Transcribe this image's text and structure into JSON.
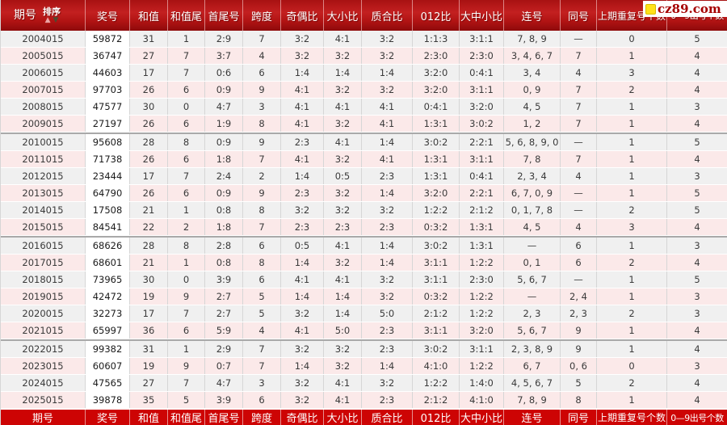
{
  "header": {
    "sort_label": "排序",
    "sort_asc_icon": "▲",
    "sort_desc_icon": "▼"
  },
  "columns": [
    {
      "key": "period",
      "label": "期号"
    },
    {
      "key": "prize",
      "label": "奖号"
    },
    {
      "key": "sum",
      "label": "和值"
    },
    {
      "key": "sum_tail",
      "label": "和值尾"
    },
    {
      "key": "first_last",
      "label": "首尾号"
    },
    {
      "key": "span",
      "label": "跨度"
    },
    {
      "key": "odd_even",
      "label": "奇偶比"
    },
    {
      "key": "big_small",
      "label": "大小比"
    },
    {
      "key": "prime_comp",
      "label": "质合比"
    },
    {
      "key": "ratio_012",
      "label": "012比"
    },
    {
      "key": "big_mid_small",
      "label": "大中小比"
    },
    {
      "key": "consecutive",
      "label": "连号"
    },
    {
      "key": "same_number",
      "label": "同号"
    },
    {
      "key": "prev_repeat",
      "label": "上期重复号个数"
    },
    {
      "key": "digit_count",
      "label": "0—9出号个数"
    }
  ],
  "rows": [
    [
      "2004015",
      "59872",
      "31",
      "1",
      "2:9",
      "7",
      "3:2",
      "4:1",
      "3:2",
      "1:1:3",
      "3:1:1",
      "7, 8, 9",
      "—",
      "0",
      "5"
    ],
    [
      "2005015",
      "36747",
      "27",
      "7",
      "3:7",
      "4",
      "3:2",
      "3:2",
      "3:2",
      "2:3:0",
      "2:3:0",
      "3, 4, 6, 7",
      "7",
      "1",
      "4"
    ],
    [
      "2006015",
      "44603",
      "17",
      "7",
      "0:6",
      "6",
      "1:4",
      "1:4",
      "1:4",
      "3:2:0",
      "0:4:1",
      "3, 4",
      "4",
      "3",
      "4"
    ],
    [
      "2007015",
      "97703",
      "26",
      "6",
      "0:9",
      "9",
      "4:1",
      "3:2",
      "3:2",
      "3:2:0",
      "3:1:1",
      "0, 9",
      "7",
      "2",
      "4"
    ],
    [
      "2008015",
      "47577",
      "30",
      "0",
      "4:7",
      "3",
      "4:1",
      "4:1",
      "4:1",
      "0:4:1",
      "3:2:0",
      "4, 5",
      "7",
      "1",
      "3"
    ],
    [
      "2009015",
      "27197",
      "26",
      "6",
      "1:9",
      "8",
      "4:1",
      "3:2",
      "4:1",
      "1:3:1",
      "3:0:2",
      "1, 2",
      "7",
      "1",
      "4"
    ],
    [
      "2010015",
      "95608",
      "28",
      "8",
      "0:9",
      "9",
      "2:3",
      "4:1",
      "1:4",
      "3:0:2",
      "2:2:1",
      "5, 6, 8, 9, 0",
      "—",
      "1",
      "5"
    ],
    [
      "2011015",
      "71738",
      "26",
      "6",
      "1:8",
      "7",
      "4:1",
      "3:2",
      "4:1",
      "1:3:1",
      "3:1:1",
      "7, 8",
      "7",
      "1",
      "4"
    ],
    [
      "2012015",
      "23444",
      "17",
      "7",
      "2:4",
      "2",
      "1:4",
      "0:5",
      "2:3",
      "1:3:1",
      "0:4:1",
      "2, 3, 4",
      "4",
      "1",
      "3"
    ],
    [
      "2013015",
      "64790",
      "26",
      "6",
      "0:9",
      "9",
      "2:3",
      "3:2",
      "1:4",
      "3:2:0",
      "2:2:1",
      "6, 7, 0, 9",
      "—",
      "1",
      "5"
    ],
    [
      "2014015",
      "17508",
      "21",
      "1",
      "0:8",
      "8",
      "3:2",
      "3:2",
      "3:2",
      "1:2:2",
      "2:1:2",
      "0, 1, 7, 8",
      "—",
      "2",
      "5"
    ],
    [
      "2015015",
      "84541",
      "22",
      "2",
      "1:8",
      "7",
      "2:3",
      "2:3",
      "2:3",
      "0:3:2",
      "1:3:1",
      "4, 5",
      "4",
      "3",
      "4"
    ],
    [
      "2016015",
      "68626",
      "28",
      "8",
      "2:8",
      "6",
      "0:5",
      "4:1",
      "1:4",
      "3:0:2",
      "1:3:1",
      "—",
      "6",
      "1",
      "3"
    ],
    [
      "2017015",
      "68601",
      "21",
      "1",
      "0:8",
      "8",
      "1:4",
      "3:2",
      "1:4",
      "3:1:1",
      "1:2:2",
      "0, 1",
      "6",
      "2",
      "4"
    ],
    [
      "2018015",
      "73965",
      "30",
      "0",
      "3:9",
      "6",
      "4:1",
      "4:1",
      "3:2",
      "3:1:1",
      "2:3:0",
      "5, 6, 7",
      "—",
      "1",
      "5"
    ],
    [
      "2019015",
      "42472",
      "19",
      "9",
      "2:7",
      "5",
      "1:4",
      "1:4",
      "3:2",
      "0:3:2",
      "1:2:2",
      "—",
      "2, 4",
      "1",
      "3"
    ],
    [
      "2020015",
      "32273",
      "17",
      "7",
      "2:7",
      "5",
      "3:2",
      "1:4",
      "5:0",
      "2:1:2",
      "1:2:2",
      "2, 3",
      "2, 3",
      "2",
      "3"
    ],
    [
      "2021015",
      "65997",
      "36",
      "6",
      "5:9",
      "4",
      "4:1",
      "5:0",
      "2:3",
      "3:1:1",
      "3:2:0",
      "5, 6, 7",
      "9",
      "1",
      "4"
    ],
    [
      "2022015",
      "99382",
      "31",
      "1",
      "2:9",
      "7",
      "3:2",
      "3:2",
      "2:3",
      "3:0:2",
      "3:1:1",
      "2, 3, 8, 9",
      "9",
      "1",
      "4"
    ],
    [
      "2023015",
      "60607",
      "19",
      "9",
      "0:7",
      "7",
      "1:4",
      "3:2",
      "1:4",
      "4:1:0",
      "1:2:2",
      "6, 7",
      "0, 6",
      "0",
      "3"
    ],
    [
      "2024015",
      "47565",
      "27",
      "7",
      "4:7",
      "3",
      "3:2",
      "4:1",
      "3:2",
      "1:2:2",
      "1:4:0",
      "4, 5, 6, 7",
      "5",
      "2",
      "4"
    ],
    [
      "2025015",
      "39878",
      "35",
      "5",
      "3:9",
      "6",
      "3:2",
      "4:1",
      "2:3",
      "2:1:2",
      "4:1:0",
      "7, 8, 9",
      "8",
      "1",
      "4"
    ]
  ],
  "group_breaks": [
    6,
    12,
    18
  ],
  "watermark": {
    "text": "cz89.com"
  },
  "colors": {
    "header_red_top": "#a81112",
    "header_red_mid": "#c32020",
    "header_red_bottom": "#8d0a0b",
    "footer_red": "#cd0404",
    "row_gray": "#f0f0f0",
    "row_pink": "#fbe9e9",
    "prize_cell_bg": "#ffffff",
    "grid_line": "#d6d6d6",
    "group_line": "#a9a9a9",
    "watermark_text": "#a50000",
    "watermark_icon": "#ffe11a"
  }
}
